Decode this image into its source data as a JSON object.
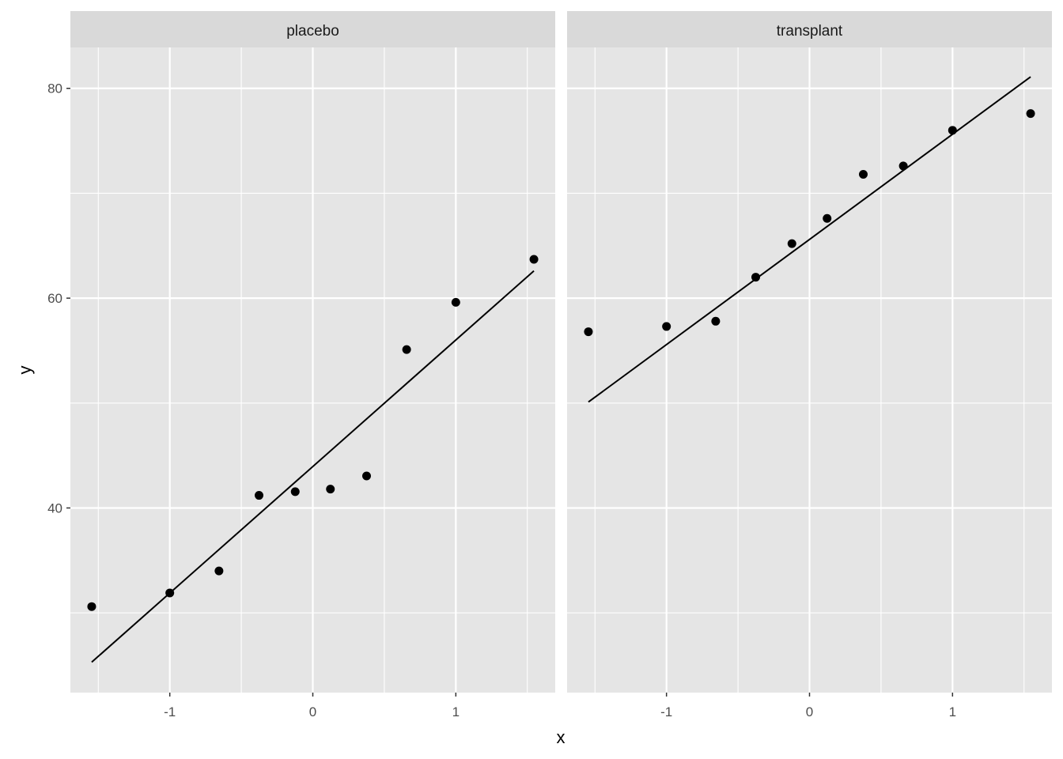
{
  "chart_data": {
    "type": "scatter",
    "xlabel": "x",
    "ylabel": "y",
    "xlim": [
      -1.695,
      1.695
    ],
    "ylim": [
      22.4,
      83.9
    ],
    "x_ticks": [
      -1,
      0,
      1
    ],
    "x_tick_labels": [
      "-1",
      "0",
      "1"
    ],
    "y_ticks": [
      40,
      60,
      80
    ],
    "y_tick_labels": [
      "40",
      "60",
      "80"
    ],
    "grid": true,
    "colors": {
      "panel": "#e5e5e5",
      "strip": "#d9d9d9",
      "grid": "#ffffff",
      "point": "#000000"
    },
    "panels": [
      {
        "label": "placebo",
        "points": [
          {
            "x": -1.546,
            "y": 30.6
          },
          {
            "x": -1.0,
            "y": 31.9
          },
          {
            "x": -0.656,
            "y": 34.0
          },
          {
            "x": -0.376,
            "y": 41.2
          },
          {
            "x": -0.123,
            "y": 41.55
          },
          {
            "x": 0.123,
            "y": 41.8
          },
          {
            "x": 0.376,
            "y": 43.05
          },
          {
            "x": 0.656,
            "y": 55.1
          },
          {
            "x": 1.0,
            "y": 59.6
          },
          {
            "x": 1.546,
            "y": 63.7
          }
        ],
        "line": [
          {
            "x": -1.546,
            "y": 25.3
          },
          {
            "x": 1.546,
            "y": 62.6
          }
        ]
      },
      {
        "label": "transplant",
        "points": [
          {
            "x": -1.546,
            "y": 56.8
          },
          {
            "x": -1.0,
            "y": 57.3
          },
          {
            "x": -0.656,
            "y": 57.8
          },
          {
            "x": -0.376,
            "y": 62.0
          },
          {
            "x": -0.123,
            "y": 65.2
          },
          {
            "x": 0.123,
            "y": 67.6
          },
          {
            "x": 0.376,
            "y": 71.8
          },
          {
            "x": 0.656,
            "y": 72.6
          },
          {
            "x": 1.0,
            "y": 76.0
          },
          {
            "x": 1.546,
            "y": 77.6
          }
        ],
        "line": [
          {
            "x": -1.546,
            "y": 50.1
          },
          {
            "x": 1.546,
            "y": 81.1
          }
        ]
      }
    ]
  }
}
